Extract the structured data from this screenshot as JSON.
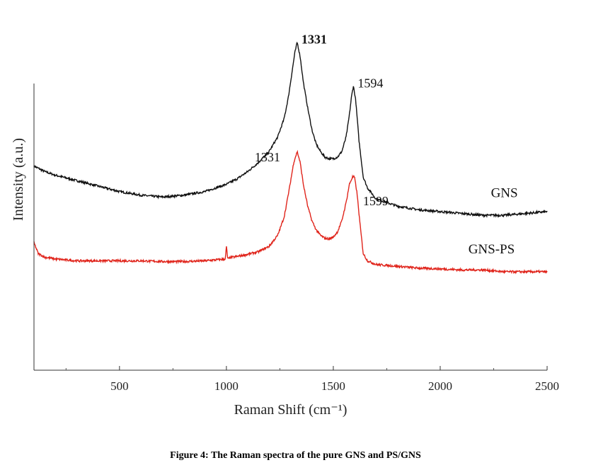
{
  "caption": "Figure 4: The Raman spectra of the pure GNS and PS/GNS",
  "chart_data": {
    "type": "line",
    "xlabel": "Raman Shift (cm⁻¹)",
    "ylabel": "Intensity (a.u.)",
    "xlim": [
      100,
      2500
    ],
    "ylim": [
      0,
      1
    ],
    "xticks": [
      500,
      1000,
      1500,
      2000,
      2500
    ],
    "xtick_labels": [
      "500",
      "1000",
      "1500",
      "2000",
      "2500"
    ],
    "y_tick_labels_shown": false,
    "grid": false,
    "series": [
      {
        "name": "GNS",
        "color": "#111111",
        "x": [
          100,
          150,
          200,
          300,
          400,
          500,
          600,
          700,
          800,
          900,
          1000,
          1050,
          1100,
          1150,
          1200,
          1240,
          1270,
          1290,
          1305,
          1320,
          1331,
          1345,
          1360,
          1380,
          1400,
          1420,
          1440,
          1460,
          1480,
          1500,
          1520,
          1540,
          1560,
          1575,
          1585,
          1594,
          1605,
          1620,
          1640,
          1660,
          1700,
          1800,
          1900,
          2000,
          2100,
          2200,
          2300,
          2400,
          2500
        ],
        "y": [
          0.56,
          0.545,
          0.535,
          0.52,
          0.505,
          0.49,
          0.48,
          0.475,
          0.48,
          0.49,
          0.51,
          0.525,
          0.545,
          0.57,
          0.6,
          0.64,
          0.69,
          0.75,
          0.81,
          0.87,
          0.9,
          0.86,
          0.79,
          0.72,
          0.66,
          0.62,
          0.6,
          0.585,
          0.58,
          0.58,
          0.585,
          0.6,
          0.64,
          0.7,
          0.75,
          0.78,
          0.74,
          0.63,
          0.53,
          0.5,
          0.47,
          0.45,
          0.44,
          0.435,
          0.43,
          0.425,
          0.425,
          0.43,
          0.435
        ]
      },
      {
        "name": "GNS-PS",
        "color": "#e0241b",
        "x": [
          100,
          110,
          120,
          150,
          200,
          300,
          400,
          500,
          600,
          700,
          800,
          900,
          995,
          1000,
          1005,
          1010,
          1020,
          1030,
          1050,
          1100,
          1150,
          1200,
          1240,
          1270,
          1295,
          1315,
          1331,
          1345,
          1360,
          1380,
          1400,
          1420,
          1440,
          1460,
          1480,
          1500,
          1520,
          1540,
          1560,
          1575,
          1590,
          1599,
          1610,
          1625,
          1640,
          1660,
          1700,
          1800,
          1900,
          2000,
          2100,
          2200,
          2300,
          2400,
          2500
        ],
        "y": [
          0.35,
          0.335,
          0.32,
          0.31,
          0.305,
          0.3,
          0.3,
          0.3,
          0.3,
          0.298,
          0.298,
          0.3,
          0.305,
          0.34,
          0.31,
          0.305,
          0.31,
          0.31,
          0.312,
          0.318,
          0.325,
          0.34,
          0.37,
          0.42,
          0.5,
          0.57,
          0.6,
          0.57,
          0.51,
          0.45,
          0.41,
          0.385,
          0.37,
          0.362,
          0.36,
          0.365,
          0.38,
          0.41,
          0.46,
          0.51,
          0.53,
          0.53,
          0.49,
          0.4,
          0.32,
          0.3,
          0.29,
          0.285,
          0.28,
          0.278,
          0.275,
          0.275,
          0.27,
          0.27,
          0.27
        ]
      }
    ],
    "annotations": [
      {
        "text": "1331",
        "x": 1331,
        "y": 0.9,
        "series": "GNS",
        "anchor": "right",
        "bold": true
      },
      {
        "text": "1594",
        "x": 1594,
        "y": 0.78,
        "series": "GNS",
        "anchor": "right",
        "bold": false
      },
      {
        "text": "1331",
        "x": 1331,
        "y": 0.6,
        "series": "GNS-PS",
        "anchor": "left",
        "bold": false
      },
      {
        "text": "1599",
        "x": 1599,
        "y": 0.53,
        "series": "GNS-PS",
        "anchor": "below-right",
        "bold": false
      }
    ],
    "series_labels": [
      {
        "text": "GNS",
        "series": "GNS"
      },
      {
        "text": "GNS-PS",
        "series": "GNS-PS"
      }
    ]
  }
}
